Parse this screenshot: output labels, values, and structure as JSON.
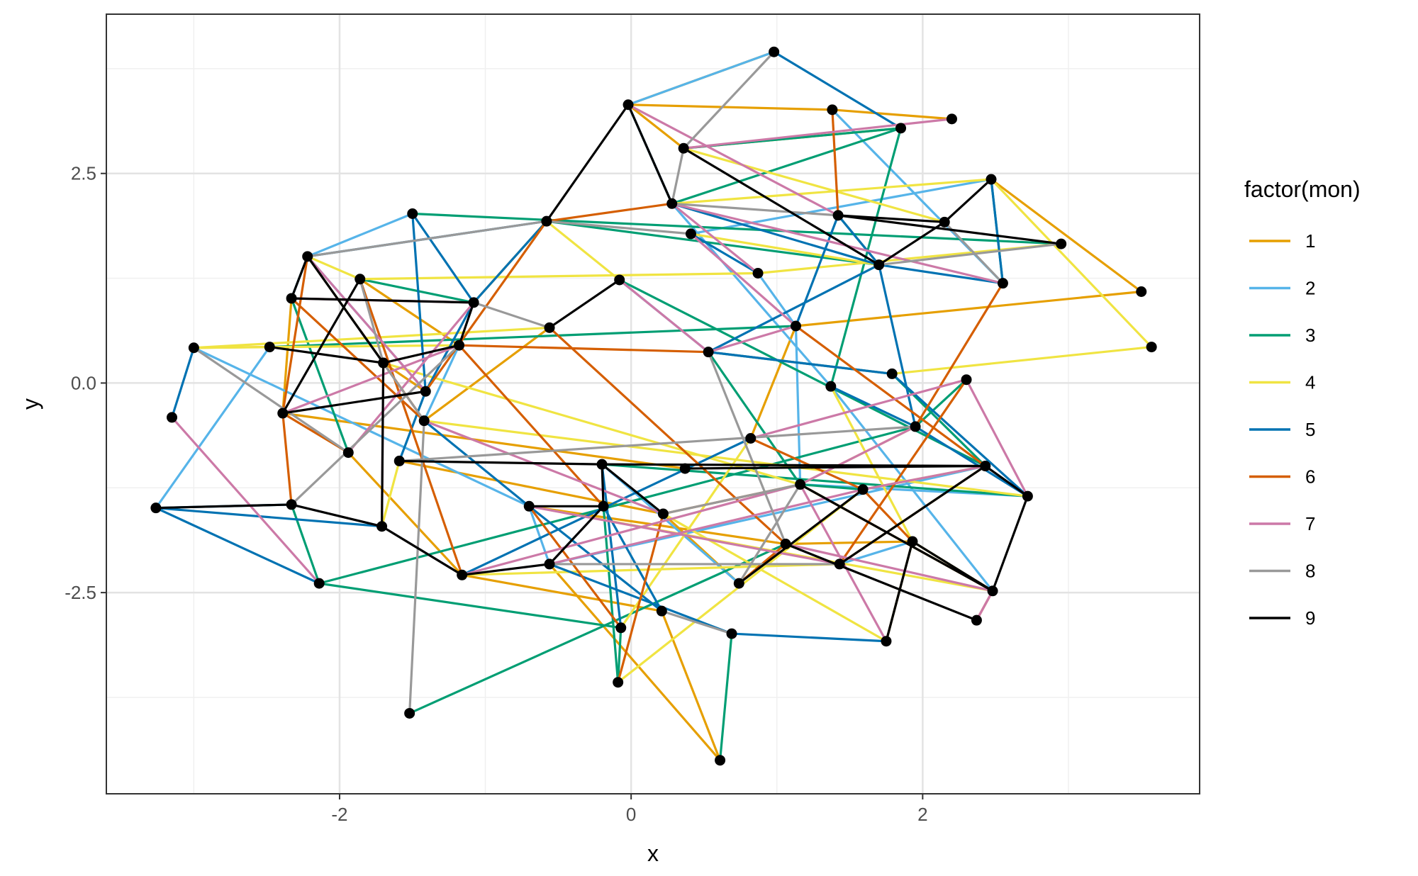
{
  "chart_data": {
    "type": "network",
    "xlabel": "x",
    "ylabel": "y",
    "xlim": [
      -3.6,
      3.9
    ],
    "ylim": [
      -4.9,
      4.4
    ],
    "x_ticks": [
      -2,
      0,
      2
    ],
    "x_tick_labels": [
      "-2",
      "0",
      "2"
    ],
    "y_ticks": [
      -2.5,
      0,
      2.5
    ],
    "y_tick_labels": [
      "-2.5",
      "0.0",
      "2.5"
    ],
    "grid": true,
    "legend": {
      "title": "factor(mon)",
      "position": "right",
      "entries": [
        {
          "label": "1",
          "color": "#E69F00"
        },
        {
          "label": "2",
          "color": "#56B4E9"
        },
        {
          "label": "3",
          "color": "#009E73"
        },
        {
          "label": "4",
          "color": "#F0E442"
        },
        {
          "label": "5",
          "color": "#0072B2"
        },
        {
          "label": "6",
          "color": "#D55E00"
        },
        {
          "label": "7",
          "color": "#CC79A7"
        },
        {
          "label": "8",
          "color": "#999999"
        },
        {
          "label": "9",
          "color": "#000000"
        }
      ]
    },
    "nodes": [
      [
        0.98,
        3.95
      ],
      [
        -0.02,
        3.32
      ],
      [
        1.38,
        3.26
      ],
      [
        2.2,
        3.15
      ],
      [
        1.85,
        3.04
      ],
      [
        0.36,
        2.8
      ],
      [
        2.47,
        2.43
      ],
      [
        0.28,
        2.14
      ],
      [
        1.42,
        2.0
      ],
      [
        -0.58,
        1.93
      ],
      [
        -1.5,
        2.02
      ],
      [
        2.15,
        1.92
      ],
      [
        0.41,
        1.78
      ],
      [
        2.95,
        1.66
      ],
      [
        -2.22,
        1.51
      ],
      [
        1.7,
        1.41
      ],
      [
        0.87,
        1.31
      ],
      [
        -1.86,
        1.24
      ],
      [
        2.55,
        1.19
      ],
      [
        3.5,
        1.09
      ],
      [
        -0.08,
        1.23
      ],
      [
        -2.33,
        1.01
      ],
      [
        -1.08,
        0.96
      ],
      [
        1.13,
        0.68
      ],
      [
        -0.56,
        0.66
      ],
      [
        -1.18,
        0.45
      ],
      [
        -3.0,
        0.42
      ],
      [
        -2.48,
        0.43
      ],
      [
        3.57,
        0.43
      ],
      [
        0.53,
        0.37
      ],
      [
        -1.7,
        0.24
      ],
      [
        1.79,
        0.11
      ],
      [
        2.3,
        0.04
      ],
      [
        -1.41,
        -0.1
      ],
      [
        1.37,
        -0.04
      ],
      [
        -3.15,
        -0.41
      ],
      [
        -2.39,
        -0.36
      ],
      [
        -1.42,
        -0.45
      ],
      [
        1.95,
        -0.52
      ],
      [
        0.82,
        -0.66
      ],
      [
        -1.94,
        -0.83
      ],
      [
        -1.59,
        -0.93
      ],
      [
        -0.2,
        -0.97
      ],
      [
        0.37,
        -1.02
      ],
      [
        2.43,
        -0.99
      ],
      [
        1.16,
        -1.21
      ],
      [
        1.59,
        -1.27
      ],
      [
        2.72,
        -1.35
      ],
      [
        -3.26,
        -1.49
      ],
      [
        -2.33,
        -1.45
      ],
      [
        -0.7,
        -1.47
      ],
      [
        -0.19,
        -1.47
      ],
      [
        0.22,
        -1.56
      ],
      [
        -1.71,
        -1.71
      ],
      [
        1.06,
        -1.92
      ],
      [
        1.93,
        -1.89
      ],
      [
        -0.56,
        -2.16
      ],
      [
        1.43,
        -2.16
      ],
      [
        -1.16,
        -2.29
      ],
      [
        -2.14,
        -2.39
      ],
      [
        0.74,
        -2.39
      ],
      [
        2.48,
        -2.48
      ],
      [
        0.21,
        -2.72
      ],
      [
        2.37,
        -2.83
      ],
      [
        -0.07,
        -2.92
      ],
      [
        0.69,
        -2.99
      ],
      [
        1.75,
        -3.08
      ],
      [
        -0.09,
        -3.57
      ],
      [
        -1.52,
        -3.94
      ],
      [
        0.61,
        -4.5
      ]
    ],
    "edges": [
      [
        1,
        0,
        1
      ],
      [
        1,
        5,
        1
      ],
      [
        1,
        2,
        1
      ],
      [
        2,
        3,
        1
      ],
      [
        5,
        4,
        1
      ],
      [
        6,
        19,
        1
      ],
      [
        9,
        22,
        1
      ],
      [
        17,
        25,
        1
      ],
      [
        21,
        36,
        1
      ],
      [
        14,
        30,
        1
      ],
      [
        36,
        43,
        1
      ],
      [
        40,
        58,
        1
      ],
      [
        58,
        62,
        1
      ],
      [
        62,
        69,
        1
      ],
      [
        50,
        54,
        1
      ],
      [
        52,
        60,
        1
      ],
      [
        45,
        61,
        1
      ],
      [
        54,
        55,
        1
      ],
      [
        39,
        23,
        1
      ],
      [
        29,
        31,
        1
      ],
      [
        26,
        27,
        1
      ],
      [
        23,
        19,
        1
      ],
      [
        24,
        37,
        1
      ],
      [
        30,
        33,
        1
      ],
      [
        41,
        52,
        1
      ],
      [
        15,
        8,
        1
      ],
      [
        44,
        57,
        1
      ],
      [
        56,
        69,
        1
      ],
      [
        0,
        1,
        2
      ],
      [
        2,
        18,
        2
      ],
      [
        6,
        12,
        2
      ],
      [
        7,
        34,
        2
      ],
      [
        16,
        23,
        2
      ],
      [
        20,
        29,
        2
      ],
      [
        14,
        33,
        2
      ],
      [
        26,
        50,
        2
      ],
      [
        48,
        27,
        2
      ],
      [
        29,
        31,
        2
      ],
      [
        45,
        47,
        2
      ],
      [
        8,
        15,
        2
      ],
      [
        10,
        14,
        2
      ],
      [
        23,
        45,
        2
      ],
      [
        55,
        57,
        2
      ],
      [
        42,
        60,
        2
      ],
      [
        56,
        44,
        2
      ],
      [
        50,
        56,
        2
      ],
      [
        61,
        34,
        2
      ],
      [
        25,
        37,
        2
      ],
      [
        4,
        5,
        3
      ],
      [
        4,
        34,
        3
      ],
      [
        10,
        13,
        3
      ],
      [
        7,
        4,
        3
      ],
      [
        9,
        15,
        3
      ],
      [
        27,
        23,
        3
      ],
      [
        22,
        17,
        3
      ],
      [
        32,
        38,
        3
      ],
      [
        29,
        45,
        3
      ],
      [
        21,
        40,
        3
      ],
      [
        66,
        55,
        3
      ],
      [
        65,
        69,
        3
      ],
      [
        64,
        59,
        3
      ],
      [
        64,
        67,
        3
      ],
      [
        68,
        54,
        3
      ],
      [
        42,
        47,
        3
      ],
      [
        44,
        20,
        3
      ],
      [
        6,
        18,
        3
      ],
      [
        49,
        59,
        3
      ],
      [
        51,
        67,
        3
      ],
      [
        59,
        38,
        3
      ],
      [
        45,
        46,
        3
      ],
      [
        31,
        44,
        3
      ],
      [
        5,
        11,
        4
      ],
      [
        7,
        6,
        4
      ],
      [
        6,
        28,
        4
      ],
      [
        12,
        15,
        4
      ],
      [
        26,
        24,
        4
      ],
      [
        17,
        16,
        4
      ],
      [
        9,
        20,
        4
      ],
      [
        26,
        25,
        4
      ],
      [
        30,
        45,
        4
      ],
      [
        41,
        53,
        4
      ],
      [
        37,
        47,
        4
      ],
      [
        55,
        61,
        4
      ],
      [
        34,
        55,
        4
      ],
      [
        31,
        28,
        4
      ],
      [
        39,
        64,
        4
      ],
      [
        67,
        46,
        4
      ],
      [
        52,
        66,
        4
      ],
      [
        58,
        57,
        4
      ],
      [
        50,
        61,
        4
      ],
      [
        13,
        16,
        4
      ],
      [
        45,
        38,
        4
      ],
      [
        44,
        46,
        4
      ],
      [
        14,
        17,
        4
      ],
      [
        0,
        4,
        5
      ],
      [
        1,
        7,
        5
      ],
      [
        7,
        15,
        5
      ],
      [
        10,
        22,
        5
      ],
      [
        10,
        33,
        5
      ],
      [
        21,
        14,
        5
      ],
      [
        26,
        35,
        5
      ],
      [
        48,
        59,
        5
      ],
      [
        48,
        53,
        5
      ],
      [
        14,
        9,
        5
      ],
      [
        9,
        22,
        5
      ],
      [
        8,
        23,
        5
      ],
      [
        12,
        16,
        5
      ],
      [
        6,
        18,
        5
      ],
      [
        15,
        38,
        5
      ],
      [
        15,
        29,
        5
      ],
      [
        29,
        31,
        5
      ],
      [
        34,
        38,
        5
      ],
      [
        38,
        47,
        5
      ],
      [
        31,
        47,
        5
      ],
      [
        44,
        47,
        5
      ],
      [
        37,
        50,
        5
      ],
      [
        50,
        62,
        5
      ],
      [
        42,
        64,
        5
      ],
      [
        51,
        62,
        5
      ],
      [
        56,
        65,
        5
      ],
      [
        65,
        66,
        5
      ],
      [
        49,
        48,
        5
      ],
      [
        58,
        39,
        5
      ],
      [
        8,
        15,
        5
      ],
      [
        15,
        18,
        5
      ],
      [
        33,
        41,
        5
      ],
      [
        33,
        22,
        5
      ],
      [
        2,
        8,
        6
      ],
      [
        7,
        9,
        6
      ],
      [
        9,
        33,
        6
      ],
      [
        25,
        29,
        6
      ],
      [
        25,
        51,
        6
      ],
      [
        24,
        54,
        6
      ],
      [
        14,
        36,
        6
      ],
      [
        36,
        49,
        6
      ],
      [
        21,
        37,
        6
      ],
      [
        17,
        58,
        6
      ],
      [
        30,
        37,
        6
      ],
      [
        38,
        18,
        6
      ],
      [
        23,
        44,
        6
      ],
      [
        45,
        52,
        6
      ],
      [
        55,
        46,
        6
      ],
      [
        57,
        32,
        6
      ],
      [
        46,
        39,
        6
      ],
      [
        36,
        40,
        6
      ],
      [
        60,
        54,
        6
      ],
      [
        50,
        64,
        6
      ],
      [
        63,
        61,
        6
      ],
      [
        66,
        55,
        6
      ],
      [
        52,
        67,
        6
      ],
      [
        1,
        8,
        7
      ],
      [
        5,
        3,
        7
      ],
      [
        7,
        16,
        7
      ],
      [
        7,
        18,
        7
      ],
      [
        20,
        29,
        7
      ],
      [
        12,
        23,
        7
      ],
      [
        14,
        33,
        7
      ],
      [
        21,
        22,
        7
      ],
      [
        35,
        59,
        7
      ],
      [
        36,
        25,
        7
      ],
      [
        22,
        40,
        7
      ],
      [
        30,
        53,
        7
      ],
      [
        37,
        52,
        7
      ],
      [
        50,
        57,
        7
      ],
      [
        45,
        66,
        7
      ],
      [
        44,
        46,
        7
      ],
      [
        46,
        56,
        7
      ],
      [
        54,
        61,
        7
      ],
      [
        63,
        61,
        7
      ],
      [
        39,
        32,
        7
      ],
      [
        38,
        45,
        7
      ],
      [
        58,
        45,
        7
      ],
      [
        47,
        32,
        7
      ],
      [
        29,
        23,
        7
      ],
      [
        5,
        0,
        8
      ],
      [
        5,
        7,
        8
      ],
      [
        14,
        9,
        8
      ],
      [
        14,
        37,
        8
      ],
      [
        26,
        40,
        8
      ],
      [
        24,
        22,
        8
      ],
      [
        49,
        25,
        8
      ],
      [
        68,
        37,
        8
      ],
      [
        7,
        8,
        8
      ],
      [
        11,
        18,
        8
      ],
      [
        15,
        13,
        8
      ],
      [
        29,
        54,
        8
      ],
      [
        45,
        60,
        8
      ],
      [
        52,
        45,
        8
      ],
      [
        56,
        57,
        8
      ],
      [
        62,
        65,
        8
      ],
      [
        17,
        30,
        8
      ],
      [
        9,
        12,
        8
      ],
      [
        41,
        38,
        8
      ],
      [
        53,
        58,
        8
      ],
      [
        1,
        9,
        9
      ],
      [
        1,
        7,
        9
      ],
      [
        5,
        15,
        9
      ],
      [
        8,
        13,
        9
      ],
      [
        21,
        22,
        9
      ],
      [
        14,
        30,
        9
      ],
      [
        14,
        21,
        9
      ],
      [
        27,
        30,
        9
      ],
      [
        36,
        33,
        9
      ],
      [
        22,
        25,
        9
      ],
      [
        25,
        30,
        9
      ],
      [
        24,
        20,
        9
      ],
      [
        36,
        17,
        9
      ],
      [
        41,
        42,
        9
      ],
      [
        42,
        44,
        9
      ],
      [
        42,
        52,
        9
      ],
      [
        48,
        49,
        9
      ],
      [
        49,
        53,
        9
      ],
      [
        53,
        58,
        9
      ],
      [
        30,
        53,
        9
      ],
      [
        50,
        51,
        9
      ],
      [
        51,
        42,
        9
      ],
      [
        43,
        44,
        9
      ],
      [
        54,
        63,
        9
      ],
      [
        55,
        66,
        9
      ],
      [
        55,
        61,
        9
      ],
      [
        45,
        61,
        9
      ],
      [
        47,
        61,
        9
      ],
      [
        47,
        44,
        9
      ],
      [
        56,
        51,
        9
      ],
      [
        58,
        56,
        9
      ],
      [
        60,
        46,
        9
      ],
      [
        57,
        44,
        9
      ],
      [
        11,
        6,
        9
      ],
      [
        8,
        11,
        9
      ],
      [
        15,
        11,
        9
      ]
    ]
  }
}
